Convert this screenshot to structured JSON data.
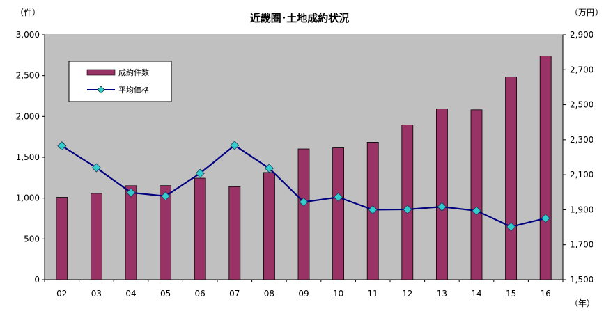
{
  "chart_data": {
    "type": "bar",
    "title": "近畿圏･土地成約状況",
    "y_left_unit": "（件）",
    "y_right_unit": "（万円）",
    "x_unit": "（年）",
    "categories": [
      "02",
      "03",
      "04",
      "05",
      "06",
      "07",
      "08",
      "09",
      "10",
      "11",
      "12",
      "13",
      "14",
      "15",
      "16"
    ],
    "series": [
      {
        "name": "成約件数",
        "kind": "bar",
        "axis": "left",
        "color": "#993366",
        "values": [
          1010,
          1058,
          1152,
          1153,
          1244,
          1140,
          1313,
          1602,
          1615,
          1684,
          1897,
          2093,
          2081,
          2485,
          2740
        ]
      },
      {
        "name": "平均価格",
        "kind": "line",
        "axis": "right",
        "color": "#000080",
        "marker_color": "#33CCCC",
        "values": [
          2265,
          2140,
          1998,
          1978,
          2108,
          2268,
          2137,
          1944,
          1972,
          1900,
          1902,
          1917,
          1894,
          1803,
          1851
        ]
      }
    ],
    "y_left": {
      "min": 0,
      "max": 3000,
      "step": 500,
      "ticks": [
        "0",
        "500",
        "1,000",
        "1,500",
        "2,000",
        "2,500",
        "3,000"
      ]
    },
    "y_right": {
      "min": 1500,
      "max": 2900,
      "step": 200,
      "ticks": [
        "1,500",
        "1,700",
        "1,900",
        "2,100",
        "2,300",
        "2,500",
        "2,700",
        "2,900"
      ]
    },
    "plot_background": "#C0C0C0",
    "grid": false,
    "legend_position": "top-left"
  }
}
